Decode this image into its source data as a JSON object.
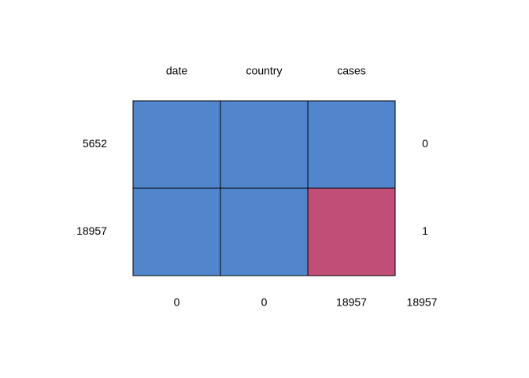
{
  "chart_data": {
    "type": "heatmap",
    "title": "",
    "columns": [
      "date",
      "country",
      "cases"
    ],
    "rows": [
      {
        "count": "5652",
        "pattern": [
          1,
          1,
          1
        ],
        "missing_vars": "0"
      },
      {
        "count": "18957",
        "pattern": [
          1,
          1,
          0
        ],
        "missing_vars": "1"
      }
    ],
    "column_missing_totals": [
      "0",
      "0",
      "18957"
    ],
    "total_missing": "18957",
    "colors": {
      "observed": "#5286CC",
      "missing": "#C04E77",
      "border": "#000000"
    },
    "legend": "none",
    "grid": false
  }
}
